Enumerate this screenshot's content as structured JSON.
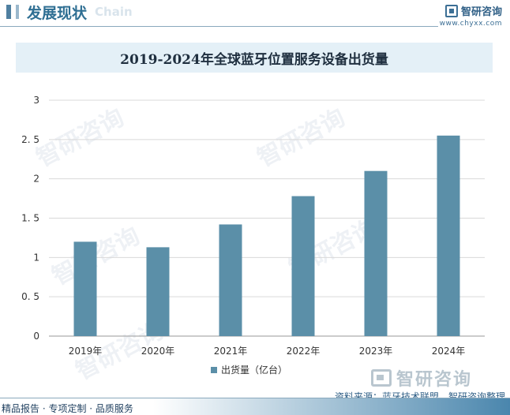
{
  "header": {
    "title": "发展现状",
    "title_en": "Chain"
  },
  "brand": {
    "name": "智研咨询",
    "url": "www.chyxx.com",
    "watermark_text": "智研咨询"
  },
  "chart_data": {
    "type": "bar",
    "title": "2019-2024年全球蓝牙位置服务设备出货量",
    "categories": [
      "2019年",
      "2020年",
      "2021年",
      "2022年",
      "2023年",
      "2024年"
    ],
    "series": [
      {
        "name": "出货量（亿台）",
        "values": [
          1.2,
          1.13,
          1.42,
          1.78,
          2.1,
          2.55
        ]
      }
    ],
    "yticks": [
      "0",
      "0. 5",
      "1",
      "1. 5",
      "2",
      "2. 5",
      "3"
    ],
    "ylim": [
      0,
      3
    ],
    "xlabel": "",
    "ylabel": "",
    "grid": true,
    "legend_position": "bottom",
    "bar_color": "#5b8fa8"
  },
  "footer": {
    "source": "资料来源：蓝牙技术联盟、智研咨询整理",
    "services": "精品报告 · 专项定制 · 品质服务"
  }
}
